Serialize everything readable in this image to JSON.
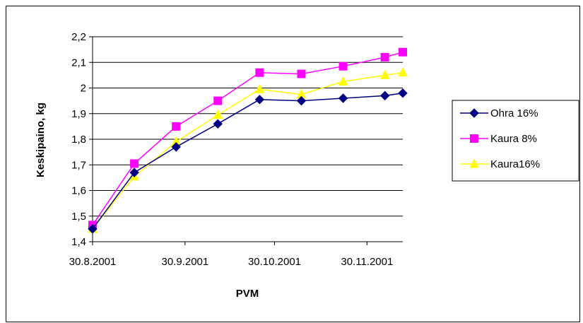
{
  "chart_data": {
    "type": "line",
    "title": "",
    "xlabel": "PVM",
    "ylabel": "Keskipaino, kg",
    "x_ticks": [
      "30.8.2001",
      "30.9.2001",
      "30.10.2001",
      "30.11.2001"
    ],
    "x_tick_dates": [
      "2001-08-30",
      "2001-09-30",
      "2001-10-30",
      "2001-11-30"
    ],
    "x_range": [
      "2001-08-30",
      "2001-12-12"
    ],
    "y_ticks": [
      "1,4",
      "1,5",
      "1,6",
      "1,7",
      "1,8",
      "1,9",
      "2",
      "2,1",
      "2,2"
    ],
    "ylim": [
      1.4,
      2.2
    ],
    "grid": "horizontal",
    "legend_position": "right",
    "x": [
      "2001-08-30",
      "2001-09-13",
      "2001-09-27",
      "2001-10-11",
      "2001-10-25",
      "2001-11-08",
      "2001-11-22",
      "2001-12-06",
      "2001-12-12"
    ],
    "series": [
      {
        "name": "Ohra 16%",
        "color": "#000080",
        "marker": "diamond",
        "values": [
          1.45,
          1.67,
          1.77,
          1.86,
          1.955,
          1.95,
          1.96,
          1.97,
          1.98
        ]
      },
      {
        "name": "Kaura 8%",
        "color": "#FF00FF",
        "marker": "square",
        "values": [
          1.465,
          1.705,
          1.85,
          1.95,
          2.06,
          2.055,
          2.085,
          2.12,
          2.14
        ]
      },
      {
        "name": "Kaura16%",
        "color": "#FFFF00",
        "marker": "triangle",
        "values": [
          1.45,
          1.655,
          1.79,
          1.895,
          1.995,
          1.975,
          2.025,
          2.05,
          2.06
        ]
      }
    ]
  }
}
